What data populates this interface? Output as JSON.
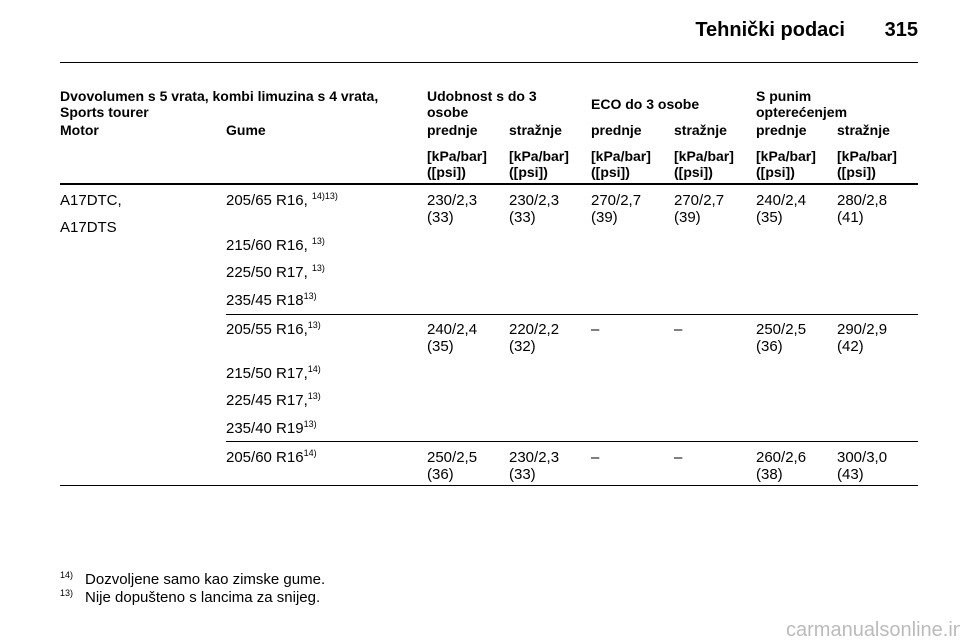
{
  "header": {
    "title": "Tehnički podaci",
    "page": "315"
  },
  "table": {
    "group_header": {
      "main": [
        "Dvovolumen s 5 vrata, kombi limuzina s 4 vrata,",
        "Sports tourer"
      ],
      "comfort": [
        "Udobnost s do 3",
        "osobe"
      ],
      "eco": "ECO do 3 osobe",
      "full": [
        "S punim",
        "opterećenjem"
      ]
    },
    "columns": [
      "Motor",
      "Gume",
      "prednje",
      "stražnje",
      "prednje",
      "stražnje",
      "prednje",
      "stražnje"
    ],
    "units": [
      [
        "[kPa/bar]",
        "([psi])"
      ],
      [
        "[kPa/bar]",
        "([psi])"
      ],
      [
        "[kPa/bar]",
        "([psi])"
      ],
      [
        "[kPa/bar]",
        "([psi])"
      ],
      [
        "[kPa/bar]",
        "([psi])"
      ],
      [
        "[kPa/bar]",
        "([psi])"
      ]
    ],
    "motor": [
      "A17DTC,",
      "A17DTS"
    ],
    "groups": [
      {
        "tyres": [
          {
            "text": "205/65 R16, ",
            "note": "14)13)"
          },
          {
            "text": "215/60 R16, ",
            "note": "13)"
          },
          {
            "text": "225/50 R17, ",
            "note": "13)"
          },
          {
            "text": "235/45 R18",
            "note": "13)"
          }
        ],
        "values": [
          [
            "230/2,3",
            "(33)"
          ],
          [
            "230/2,3",
            "(33)"
          ],
          [
            "270/2,7",
            "(39)"
          ],
          [
            "270/2,7",
            "(39)"
          ],
          [
            "240/2,4",
            "(35)"
          ],
          [
            "280/2,8",
            "(41)"
          ]
        ]
      },
      {
        "tyres": [
          {
            "text": "205/55 R16,",
            "note": "13)"
          },
          {
            "text": "215/50 R17,",
            "note": "14)"
          },
          {
            "text": "225/45 R17,",
            "note": "13)"
          },
          {
            "text": "235/40 R19",
            "note": "13)"
          }
        ],
        "values": [
          [
            "240/2,4",
            "(35)"
          ],
          [
            "220/2,2",
            "(32)"
          ],
          "–",
          "–",
          [
            "250/2,5",
            "(36)"
          ],
          [
            "290/2,9",
            "(42)"
          ]
        ]
      },
      {
        "tyres": [
          {
            "text": "205/60 R16",
            "note": "14)"
          }
        ],
        "values": [
          [
            "250/2,5",
            "(36)"
          ],
          [
            "230/2,3",
            "(33)"
          ],
          "–",
          "–",
          [
            "260/2,6",
            "(38)"
          ],
          [
            "300/3,0",
            "(43)"
          ]
        ]
      }
    ]
  },
  "footnotes": [
    {
      "mark": "14)",
      "text": "Dozvoljene samo kao zimske gume."
    },
    {
      "mark": "13)",
      "text": "Nije dopušteno s lancima za snijeg."
    }
  ],
  "watermark": "carmanualsonline.info"
}
